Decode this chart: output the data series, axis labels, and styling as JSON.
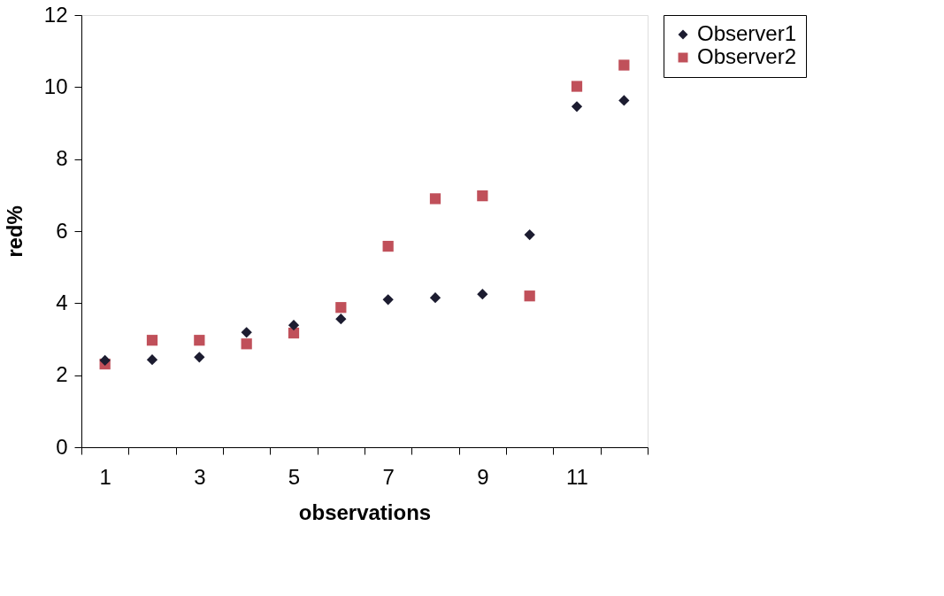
{
  "chart_data": {
    "type": "scatter",
    "xlabel": "observations",
    "ylabel": "red%",
    "categories": [
      "1",
      null,
      "3",
      null,
      "5",
      null,
      "7",
      null,
      "9",
      null,
      "11",
      null
    ],
    "series": [
      {
        "name": "Observer1",
        "color": "#1c1c30",
        "marker": "diamond",
        "values": [
          2.41,
          2.43,
          2.5,
          3.19,
          3.39,
          3.56,
          4.1,
          4.15,
          4.25,
          5.9,
          9.46,
          9.63
        ]
      },
      {
        "name": "Observer2",
        "color": "#c0505a",
        "marker": "square",
        "values": [
          2.31,
          2.97,
          2.97,
          2.87,
          3.17,
          3.88,
          5.58,
          6.9,
          6.98,
          4.2,
          10.02,
          10.61
        ]
      }
    ],
    "ylim": [
      0,
      12
    ],
    "yticks": [
      0,
      2,
      4,
      6,
      8,
      10,
      12
    ],
    "grid": false,
    "legend": "right"
  }
}
